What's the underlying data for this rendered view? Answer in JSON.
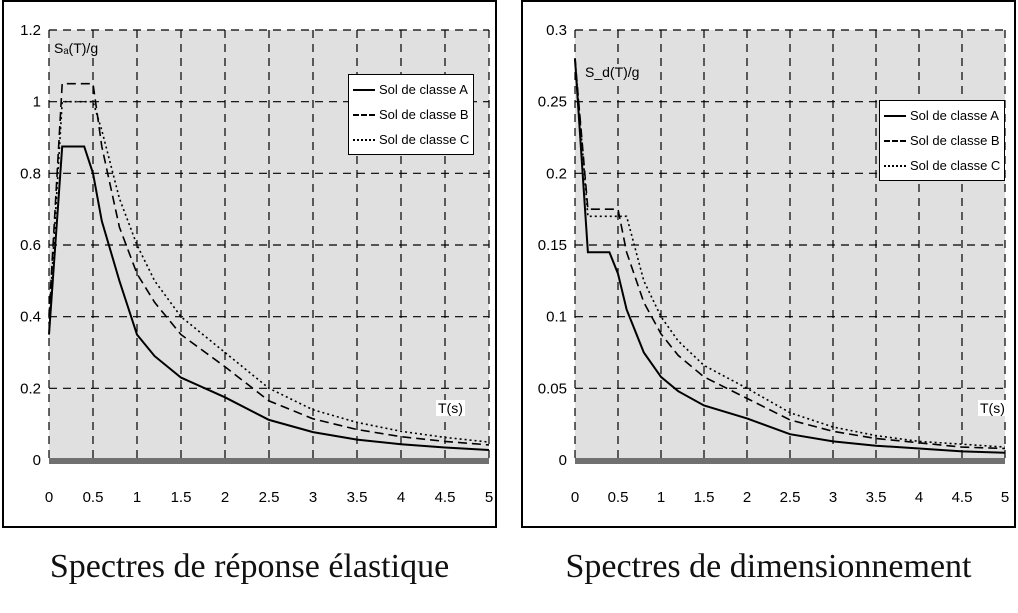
{
  "colors": {
    "plot_bg": "#e0e0e0",
    "grid": "#000000",
    "line": "#000000",
    "axis_strip": "#707070"
  },
  "chart_data": [
    {
      "type": "line",
      "caption": "Spectres de réponse élastique",
      "ylabel": "Sₐ(T)/g",
      "xlabel": "T(s)",
      "xlim": [
        0,
        5
      ],
      "ylim": [
        0,
        1.2
      ],
      "xticks": [
        "0",
        "0.5",
        "1",
        "1.5",
        "2",
        "2.5",
        "3",
        "3.5",
        "4",
        "4.5",
        "5"
      ],
      "yticks": [
        "0",
        "0.2",
        "0.4",
        "0.6",
        "0.8",
        "1",
        "1.2"
      ],
      "grid": true,
      "legend_position": "top-right",
      "series": [
        {
          "name": "Sol de classe A",
          "style": "solid",
          "x": [
            0,
            0.15,
            0.4,
            0.5,
            0.6,
            0.8,
            1,
            1.2,
            1.5,
            2,
            2.5,
            3,
            3.5,
            4,
            4.5,
            5
          ],
          "y": [
            0.35,
            0.875,
            0.875,
            0.8,
            0.667,
            0.5,
            0.35,
            0.29,
            0.23,
            0.175,
            0.112,
            0.078,
            0.057,
            0.044,
            0.035,
            0.028
          ]
        },
        {
          "name": "Sol de classe B",
          "style": "dashed",
          "x": [
            0,
            0.15,
            0.5,
            0.6,
            0.8,
            1,
            1.2,
            1.5,
            2,
            2.5,
            3,
            3.5,
            4,
            4.5,
            5
          ],
          "y": [
            0.4,
            1.05,
            1.05,
            0.875,
            0.65,
            0.52,
            0.44,
            0.35,
            0.26,
            0.165,
            0.115,
            0.085,
            0.065,
            0.052,
            0.042
          ]
        },
        {
          "name": "Sol de classe C",
          "style": "dotted",
          "x": [
            0,
            0.15,
            0.5,
            0.6,
            0.8,
            1,
            1.2,
            1.5,
            2,
            2.5,
            3,
            3.5,
            4,
            4.5,
            5
          ],
          "y": [
            0.38,
            1.0,
            1.0,
            0.92,
            0.73,
            0.6,
            0.5,
            0.4,
            0.3,
            0.2,
            0.14,
            0.105,
            0.08,
            0.063,
            0.05
          ]
        }
      ]
    },
    {
      "type": "line",
      "caption": "Spectres de dimensionnement",
      "ylabel": "S_d(T)/g",
      "xlabel": "T(s)",
      "xlim": [
        0,
        5
      ],
      "ylim": [
        0,
        0.3
      ],
      "xticks": [
        "0",
        "0.5",
        "1",
        "1.5",
        "2",
        "2.5",
        "3",
        "3.5",
        "4",
        "4.5",
        "5"
      ],
      "yticks": [
        "0",
        "0.05",
        "0.1",
        "0.15",
        "0.2",
        "0.25",
        "0.3"
      ],
      "grid": true,
      "legend_position": "top-right",
      "series": [
        {
          "name": "Sol de classe A",
          "style": "solid",
          "x": [
            0,
            0.15,
            0.4,
            0.5,
            0.6,
            0.8,
            1,
            1.2,
            1.5,
            2,
            2.5,
            3,
            3.5,
            4,
            4.5,
            5
          ],
          "y": [
            0.28,
            0.145,
            0.145,
            0.13,
            0.105,
            0.075,
            0.058,
            0.048,
            0.038,
            0.029,
            0.018,
            0.013,
            0.01,
            0.008,
            0.006,
            0.005
          ]
        },
        {
          "name": "Sol de classe B",
          "style": "dashed",
          "x": [
            0,
            0.15,
            0.5,
            0.6,
            0.8,
            1,
            1.2,
            1.5,
            2,
            2.5,
            3,
            3.5,
            4,
            4.5,
            5
          ],
          "y": [
            0.28,
            0.175,
            0.175,
            0.145,
            0.11,
            0.088,
            0.073,
            0.058,
            0.043,
            0.028,
            0.02,
            0.015,
            0.012,
            0.009,
            0.008
          ]
        },
        {
          "name": "Sol de classe C",
          "style": "dotted",
          "x": [
            0,
            0.15,
            0.6,
            0.8,
            1,
            1.2,
            1.5,
            2,
            2.5,
            3,
            3.5,
            4,
            4.5,
            5
          ],
          "y": [
            0.28,
            0.17,
            0.17,
            0.125,
            0.1,
            0.083,
            0.066,
            0.05,
            0.033,
            0.023,
            0.017,
            0.013,
            0.011,
            0.009
          ]
        }
      ]
    }
  ]
}
